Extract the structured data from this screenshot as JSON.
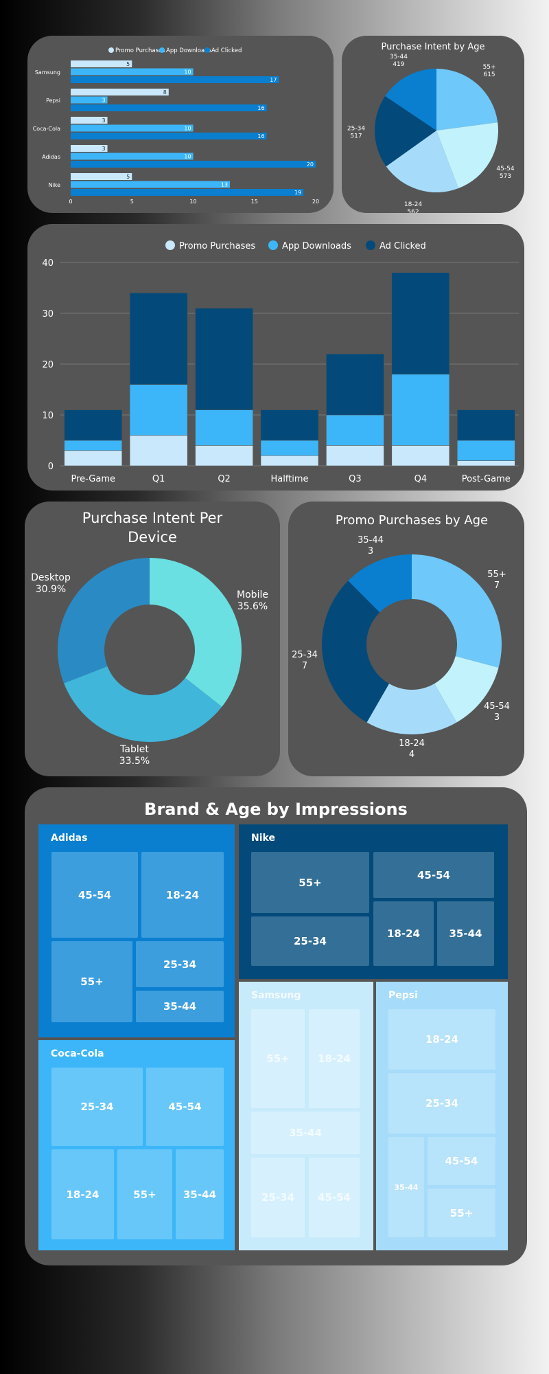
{
  "colors": {
    "promo": "#c9e8fb",
    "app": "#3cb6f9",
    "ad": "#0a7fd0",
    "ad_dark": "#034a7a",
    "card": "#555555",
    "age_55": "#6ec8f9",
    "age_45_54": "#c2f2fc",
    "age_18_24": "#a6dcfa",
    "age_25_34": "#034a7a",
    "age_35_44": "#0a7fd0",
    "mobile": "#6ae0e2",
    "tablet": "#40b6db",
    "desktop": "#2a8ac4"
  },
  "chart_data": [
    {
      "type": "bar",
      "orientation": "horizontal",
      "categories": [
        "Samsung",
        "Pepsi",
        "Coca-Cola",
        "Adidas",
        "Nike"
      ],
      "series": [
        {
          "name": "Promo Purchases",
          "values": [
            5,
            8,
            3,
            3,
            5
          ]
        },
        {
          "name": "App Downloads",
          "values": [
            10,
            3,
            10,
            10,
            13
          ]
        },
        {
          "name": "Ad Clicked",
          "values": [
            17,
            16,
            16,
            20,
            19
          ]
        }
      ],
      "xlim": [
        0,
        20
      ],
      "xticks": [
        0,
        5,
        10,
        15,
        20
      ],
      "legend": "top"
    },
    {
      "type": "pie",
      "title": "Purchase Intent by Age",
      "labels": [
        "55+",
        "45-54",
        "18-24",
        "25-34",
        "35-44"
      ],
      "values": [
        615,
        573,
        562,
        517,
        419
      ]
    },
    {
      "type": "bar",
      "stacked": true,
      "categories": [
        "Pre-Game",
        "Q1",
        "Q2",
        "Halftime",
        "Q3",
        "Q4",
        "Post-Game"
      ],
      "series": [
        {
          "name": "Promo Purchases",
          "values": [
            3,
            6,
            4,
            2,
            4,
            4,
            1
          ]
        },
        {
          "name": "App Downloads",
          "values": [
            2,
            10,
            7,
            3,
            6,
            14,
            4
          ]
        },
        {
          "name": "Ad Clicked",
          "values": [
            6,
            18,
            20,
            6,
            12,
            20,
            6
          ]
        }
      ],
      "ylim": [
        0,
        40
      ],
      "yticks": [
        0,
        10,
        20,
        30,
        40
      ],
      "grid": true,
      "legend": "top"
    },
    {
      "type": "pie",
      "donut": true,
      "title": "Purchase Intent Per Device",
      "labels": [
        "Mobile",
        "Tablet",
        "Desktop"
      ],
      "values": [
        35.6,
        33.5,
        30.9
      ],
      "value_labels": [
        "35.6%",
        "33.5%",
        "30.9%"
      ]
    },
    {
      "type": "pie",
      "donut": true,
      "title": "Promo Purchases by Age",
      "labels": [
        "55+",
        "45-54",
        "18-24",
        "25-34",
        "35-44"
      ],
      "values": [
        7,
        3,
        4,
        7,
        3
      ]
    },
    {
      "type": "treemap",
      "title": "Brand & Age by Impressions",
      "groups": [
        {
          "name": "Adidas",
          "items": [
            "45-54",
            "18-24",
            "55+",
            "25-34",
            "35-44"
          ]
        },
        {
          "name": "Nike",
          "items": [
            "55+",
            "45-54",
            "25-34",
            "18-24",
            "35-44"
          ]
        },
        {
          "name": "Coca-Cola",
          "items": [
            "25-34",
            "45-54",
            "18-24",
            "55+",
            "35-44"
          ]
        },
        {
          "name": "Samsung",
          "items": [
            "55+",
            "18-24",
            "35-44",
            "25-34",
            "45-54"
          ]
        },
        {
          "name": "Pepsi",
          "items": [
            "18-24",
            "25-34",
            "35-44",
            "45-54",
            "55+"
          ]
        }
      ]
    }
  ]
}
